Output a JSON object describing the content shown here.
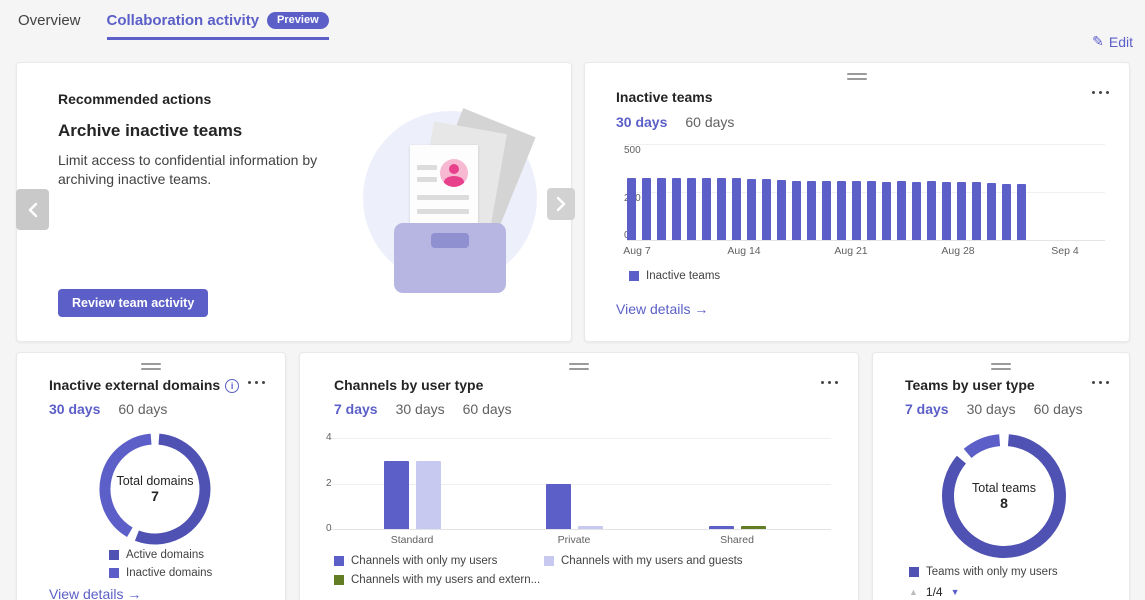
{
  "header": {
    "tabs": [
      {
        "label": "Overview",
        "active": false
      },
      {
        "label": "Collaboration activity",
        "active": true,
        "badge": "Preview"
      }
    ],
    "edit_label": "Edit"
  },
  "recommended_card": {
    "eyebrow": "Recommended actions",
    "title": "Archive inactive teams",
    "description": "Limit access to confidential information by archiving inactive teams.",
    "button_label": "Review team activity"
  },
  "inactive_teams_card": {
    "title": "Inactive teams",
    "filters": [
      {
        "label": "30 days",
        "active": true
      },
      {
        "label": "60 days",
        "active": false
      }
    ],
    "view_details_label": "View details →"
  },
  "domains_card": {
    "title": "Inactive external domains",
    "filters": [
      {
        "label": "30 days",
        "active": true
      },
      {
        "label": "60 days",
        "active": false
      }
    ],
    "view_details_label": "View details →"
  },
  "channels_card": {
    "title": "Channels by user type",
    "filters": [
      {
        "label": "7 days",
        "active": true
      },
      {
        "label": "30 days",
        "active": false
      },
      {
        "label": "60 days",
        "active": false
      }
    ]
  },
  "teams_type_card": {
    "title": "Teams by user type",
    "filters": [
      {
        "label": "7 days",
        "active": true
      },
      {
        "label": "30 days",
        "active": false
      },
      {
        "label": "60 days",
        "active": false
      }
    ],
    "pagination": "1/4"
  },
  "chart_data": [
    {
      "id": "inactive-teams-trend",
      "type": "bar",
      "title": "Inactive teams",
      "values": [
        322,
        322,
        322,
        322,
        322,
        322,
        322,
        322,
        320,
        316,
        310,
        308,
        306,
        306,
        308,
        306,
        306,
        304,
        306,
        304,
        306,
        304,
        302,
        304,
        296,
        290,
        294
      ],
      "xticks": [
        "Aug 7",
        "Aug 14",
        "Aug 21",
        "Aug 28",
        "Sep 4"
      ],
      "yticks": [
        0,
        250,
        500
      ],
      "ylim": [
        0,
        500
      ],
      "bar_color": "#5b5fc7",
      "legend": [
        {
          "label": "Inactive teams",
          "color": "#5b5fc7"
        }
      ]
    },
    {
      "id": "inactive-external-domains",
      "type": "donut",
      "center_label": "Total domains",
      "center_value": 7,
      "segments": [
        {
          "label": "Active domains",
          "value": 4,
          "color": "#4f52b2"
        },
        {
          "label": "Inactive domains",
          "value": 3,
          "color": "#5b5fc7"
        }
      ]
    },
    {
      "id": "channels-by-user-type",
      "type": "grouped-bar",
      "categories": [
        "Standard",
        "Private",
        "Shared"
      ],
      "yticks": [
        0,
        2,
        4
      ],
      "ylim": [
        0,
        4
      ],
      "series": [
        {
          "name": "Channels with only my users",
          "color": "#5b5fc7",
          "values": [
            3,
            2,
            0
          ]
        },
        {
          "name": "Channels with my users and guests",
          "color": "#c7c9f0",
          "values": [
            3,
            0,
            null
          ]
        },
        {
          "name": "Channels with my users and extern...",
          "color": "#637d25",
          "values": [
            null,
            null,
            0
          ]
        }
      ]
    },
    {
      "id": "teams-by-user-type",
      "type": "donut",
      "center_label": "Total teams",
      "center_value": 8,
      "segments": [
        {
          "label": "Teams with only my users",
          "value": 7,
          "color": "#4f52b2"
        },
        {
          "label": "",
          "value": 1,
          "color": "#5b5fc7"
        }
      ]
    }
  ]
}
